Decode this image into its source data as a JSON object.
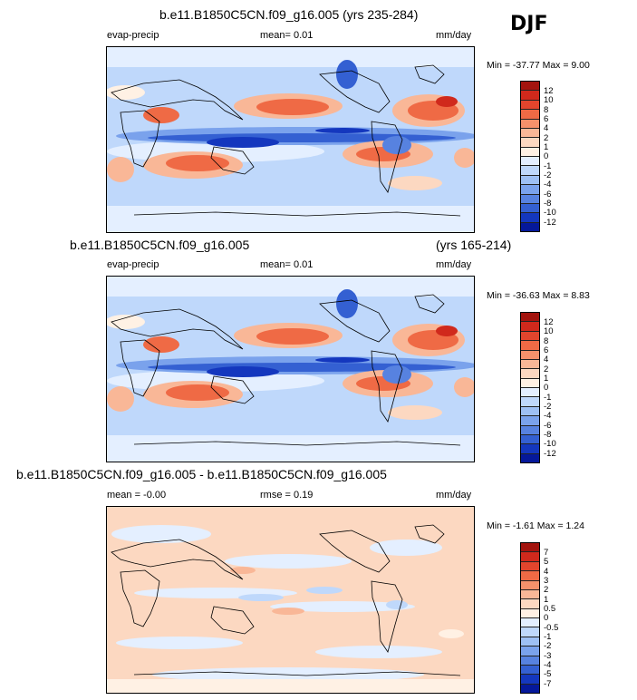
{
  "season": "DJF",
  "panels": [
    {
      "title": "b.e11.B1850C5CN.f09_g16.005 (yrs 235-284)",
      "title_right": "",
      "left_label": "evap-precip",
      "center_label": "mean=  0.01",
      "units": "mm/day",
      "minmax": "Min = -37.77 Max =   9.00",
      "levels": [
        "12",
        "10",
        "8",
        "6",
        "4",
        "2",
        "1",
        "0",
        "-1",
        "-2",
        "-4",
        "-6",
        "-8",
        "-10",
        "-12"
      ],
      "colors": [
        "#a3140e",
        "#d0291c",
        "#e2452d",
        "#ef6a45",
        "#f5916b",
        "#f9b797",
        "#fcd8c1",
        "#fff1e4",
        "#e4efff",
        "#bfd8fb",
        "#9ec0f4",
        "#7aa2ec",
        "#5782e0",
        "#3460d2",
        "#1437be",
        "#05189a"
      ]
    },
    {
      "title": "b.e11.B1850C5CN.f09_g16.005",
      "title_right": "(yrs 165-214)",
      "left_label": "evap-precip",
      "center_label": "mean=  0.01",
      "units": "mm/day",
      "minmax": "Min = -36.63 Max =   8.83",
      "levels": [
        "12",
        "10",
        "8",
        "6",
        "4",
        "2",
        "1",
        "0",
        "-1",
        "-2",
        "-4",
        "-6",
        "-8",
        "-10",
        "-12"
      ],
      "colors": [
        "#a3140e",
        "#d0291c",
        "#e2452d",
        "#ef6a45",
        "#f5916b",
        "#f9b797",
        "#fcd8c1",
        "#fff1e4",
        "#e4efff",
        "#bfd8fb",
        "#9ec0f4",
        "#7aa2ec",
        "#5782e0",
        "#3460d2",
        "#1437be",
        "#05189a"
      ]
    },
    {
      "title": "b.e11.B1850C5CN.f09_g16.005 - b.e11.B1850C5CN.f09_g16.005",
      "title_right": "",
      "left_label": "mean =  -0.00",
      "center_label": "rmse =  0.19",
      "units": "mm/day",
      "minmax": "Min =  -1.61 Max =   1.24",
      "levels": [
        "7",
        "5",
        "4",
        "3",
        "2",
        "1",
        "0.5",
        "0",
        "-0.5",
        "-1",
        "-2",
        "-3",
        "-4",
        "-5",
        "-7"
      ],
      "colors": [
        "#a3140e",
        "#d0291c",
        "#e2452d",
        "#ef6a45",
        "#f5916b",
        "#f9b797",
        "#fcd8c1",
        "#fff1e4",
        "#e4efff",
        "#bfd8fb",
        "#9ec0f4",
        "#7aa2ec",
        "#5782e0",
        "#3460d2",
        "#1437be",
        "#05189a"
      ]
    }
  ]
}
